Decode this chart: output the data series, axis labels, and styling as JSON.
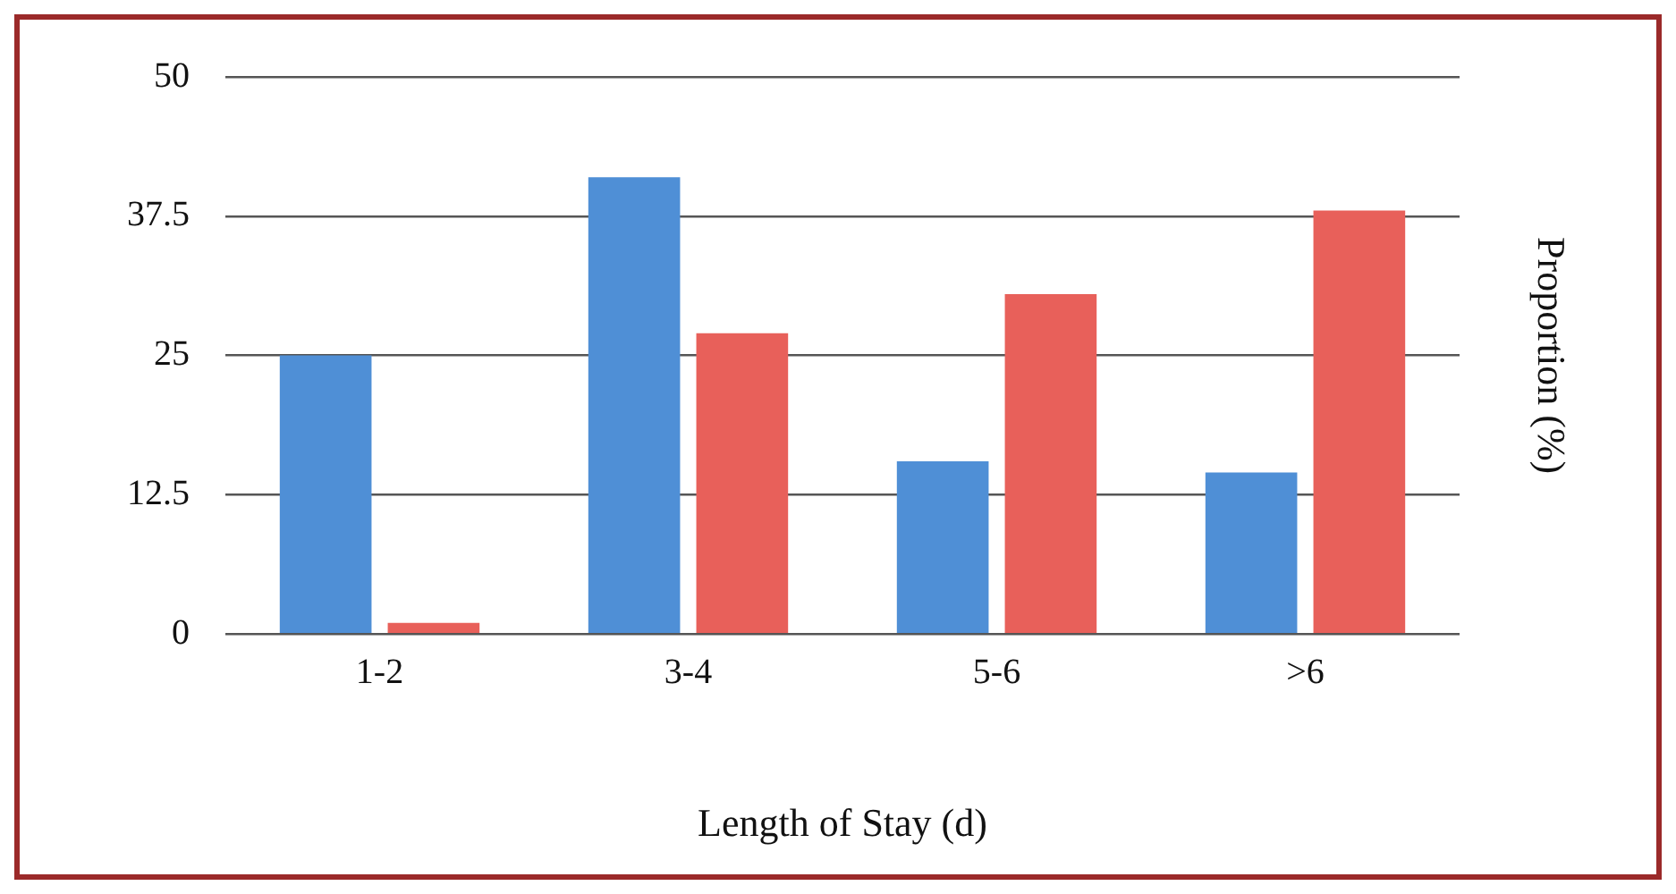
{
  "chart_data": {
    "type": "bar",
    "xlabel": "Length of Stay (d)",
    "ylabel": "Proportion (%)",
    "categories": [
      "1-2",
      "3-4",
      "5-6",
      ">6"
    ],
    "series": [
      {
        "color": "#4f8fd6",
        "values": [
          25,
          41,
          15.5,
          14.5
        ]
      },
      {
        "color": "#e8605a",
        "values": [
          1,
          27,
          30.5,
          38
        ]
      }
    ],
    "ylim": [
      0,
      50
    ],
    "yticks": [
      0,
      12.5,
      25,
      37.5,
      50
    ],
    "grid": "y",
    "legend": false
  }
}
